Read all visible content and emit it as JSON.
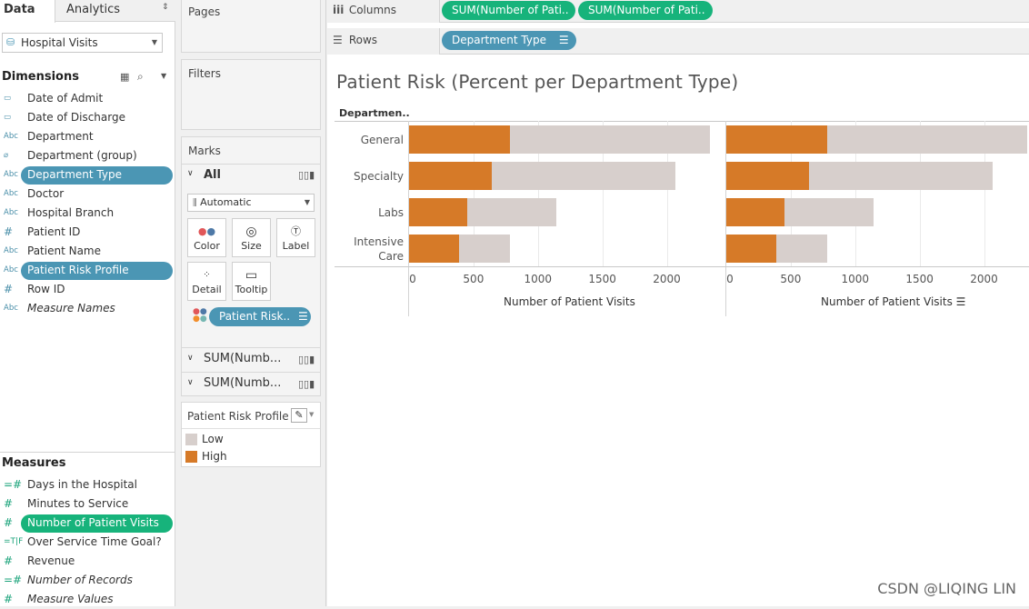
{
  "tabs": {
    "data": "Data",
    "analytics": "Analytics"
  },
  "datasource": "Hospital Visits",
  "dimensions": {
    "header": "Dimensions",
    "items": [
      {
        "icon": "calendar-icon",
        "glyph": "▭",
        "label": "Date of Admit"
      },
      {
        "icon": "calendar-icon",
        "glyph": "▭",
        "label": "Date of Discharge"
      },
      {
        "icon": "string-icon",
        "glyph": "Abc",
        "label": "Department"
      },
      {
        "icon": "paperclip-icon",
        "glyph": "⌀",
        "label": "Department (group)"
      },
      {
        "icon": "string-icon",
        "glyph": "Abc",
        "label": "Department Type"
      },
      {
        "icon": "string-icon",
        "glyph": "Abc",
        "label": "Doctor"
      },
      {
        "icon": "string-icon",
        "glyph": "Abc",
        "label": "Hospital Branch"
      },
      {
        "icon": "number-icon",
        "glyph": "#",
        "label": "Patient ID"
      },
      {
        "icon": "string-icon",
        "glyph": "Abc",
        "label": "Patient Name"
      },
      {
        "icon": "string-icon",
        "glyph": "Abc",
        "label": "Patient Risk Profile"
      },
      {
        "icon": "number-icon",
        "glyph": "#",
        "label": "Row ID"
      },
      {
        "icon": "string-icon",
        "glyph": "Abc",
        "label": "Measure Names"
      }
    ]
  },
  "measures": {
    "header": "Measures",
    "items": [
      {
        "icon": "calc-number-icon",
        "glyph": "=#",
        "label": "Days in the Hospital"
      },
      {
        "icon": "number-icon",
        "glyph": "#",
        "label": "Minutes to Service"
      },
      {
        "icon": "number-icon",
        "glyph": "#",
        "label": "Number of Patient Visits"
      },
      {
        "icon": "calc-boolean-icon",
        "glyph": "=T|F",
        "label": "Over Service Time Goal?"
      },
      {
        "icon": "number-icon",
        "glyph": "#",
        "label": "Revenue"
      },
      {
        "icon": "calc-number-icon",
        "glyph": "=#",
        "label": "Number of Records"
      },
      {
        "icon": "number-icon",
        "glyph": "#",
        "label": "Measure Values"
      }
    ]
  },
  "cards": {
    "pages": "Pages",
    "filters": "Filters",
    "marks": "Marks",
    "marks_all": "All",
    "mark_type": "Automatic",
    "buttons": {
      "color": "Color",
      "size": "Size",
      "label": "Label",
      "detail": "Detail",
      "tooltip": "Tooltip"
    },
    "color_pill": "Patient Risk..",
    "sum1": "SUM(Numb...",
    "sum2": "SUM(Numb..."
  },
  "legend": {
    "title": "Patient Risk Profile",
    "items": [
      {
        "label": "Low",
        "color": "#d7cfcc"
      },
      {
        "label": "High",
        "color": "#d67a28"
      }
    ]
  },
  "shelves": {
    "columns_label": "Columns",
    "rows_label": "Rows",
    "columns_pills": [
      "SUM(Number of Pati..",
      "SUM(Number of Pati.."
    ],
    "rows_pill": "Department Type"
  },
  "chart_data": {
    "type": "bar",
    "title": "Patient Risk (Percent per Department Type)",
    "row_header": "Departmen..",
    "categories": [
      "General",
      "Specialty",
      "Labs",
      "Intensive Care"
    ],
    "series": [
      {
        "name": "High",
        "values": [
          780,
          645,
          455,
          385
        ]
      },
      {
        "name": "Low",
        "values": [
          1555,
          1420,
          685,
          400
        ]
      }
    ],
    "totals": [
      2335,
      2065,
      1140,
      785
    ],
    "xlabel": "Number of Patient Visits",
    "xlim": [
      0,
      2300
    ],
    "xticks": [
      "0",
      "500",
      "1000",
      "1500",
      "2000"
    ],
    "colors": {
      "High": "#d67a28",
      "Low": "#d7cfcc"
    }
  },
  "watermark": "CSDN @LIQING LIN"
}
